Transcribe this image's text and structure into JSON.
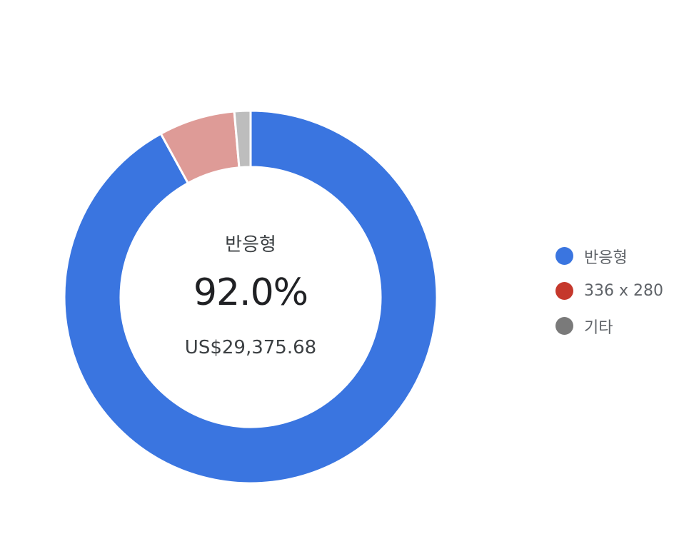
{
  "chart_data": {
    "type": "pie",
    "variant": "donut",
    "series": [
      {
        "name": "반응형",
        "value": 92.0,
        "slice_color": "#3a75e0",
        "legend_color": "#3a75e0"
      },
      {
        "name": "336 x 280",
        "value": 6.6,
        "slice_color": "#de9b97",
        "legend_color": "#c5382c"
      },
      {
        "name": "기타",
        "value": 1.4,
        "slice_color": "#bdbdbd",
        "legend_color": "#7a7a7a"
      }
    ],
    "center": {
      "title": "반응형",
      "percent": "92.0%",
      "value": "US$29,375.68"
    },
    "legend_position": "right"
  }
}
